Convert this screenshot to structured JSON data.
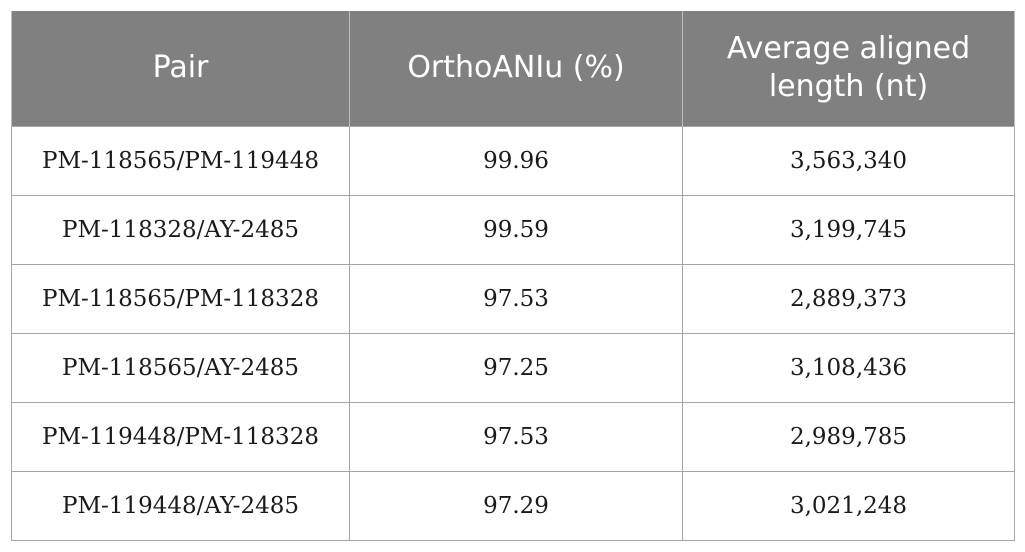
{
  "table": {
    "headers": [
      "Pair",
      "OrthoANIu (%)",
      "Average aligned length (nt)"
    ],
    "rows": [
      [
        "PM-118565/PM-119448",
        "99.96",
        "3,563,340"
      ],
      [
        "PM-118328/AY-2485",
        "99.59",
        "3,199,745"
      ],
      [
        "PM-118565/PM-118328",
        "97.53",
        "2,889,373"
      ],
      [
        "PM-118565/AY-2485",
        "97.25",
        "3,108,436"
      ],
      [
        "PM-119448/PM-118328",
        "97.53",
        "2,989,785"
      ],
      [
        "PM-119448/AY-2485",
        "97.29",
        "3,021,248"
      ]
    ]
  },
  "colors": {
    "header_bg": "#808080",
    "header_text": "#ffffff",
    "border": "#a6a6a6"
  }
}
